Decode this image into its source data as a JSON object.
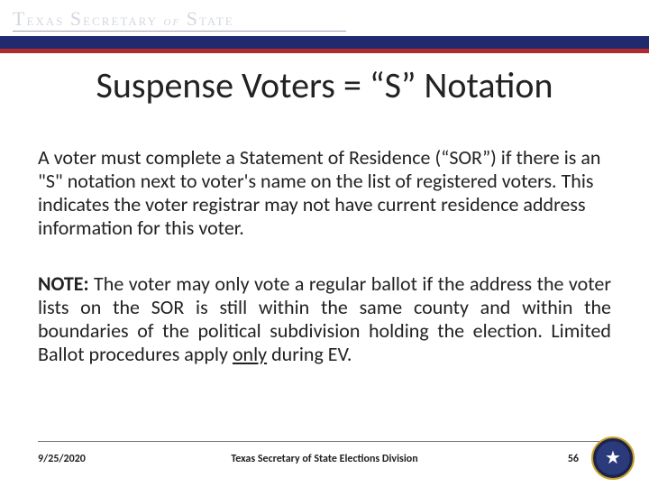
{
  "colors": {
    "blue_band": "#1f2b6e",
    "red_band": "#b02a2e",
    "header_text": "#d5d7e0",
    "rule": "#9ba0b0",
    "body_text": "#222222",
    "seal_gold": "#c9a227",
    "seal_navy": "#1a244f"
  },
  "header": {
    "org_text": "Texas Secretary of State"
  },
  "title": "Suspense Voters = “S” Notation",
  "paragraph1": "A voter must complete a Statement of Residence (“SOR”) if there is an \"S\" notation next to voter's name on the list of registered voters.  This indicates the voter registrar may not have current residence address information for this voter.",
  "note": {
    "label": "NOTE:",
    "pre": " The voter may only vote a regular ballot if the address the voter lists on the SOR is still within the same county and within the boundaries of the political subdivision holding the election. Limited Ballot procedures apply ",
    "underlined": "only",
    "post": " during EV."
  },
  "footer": {
    "date": "9/25/2020",
    "center": "Texas Secretary of State Elections Division",
    "page": "56"
  },
  "seal": {
    "glyph": "★"
  }
}
